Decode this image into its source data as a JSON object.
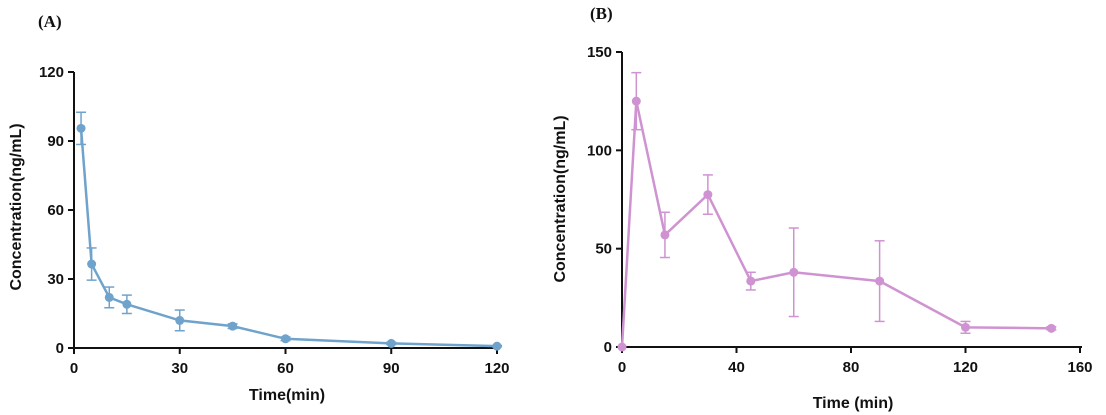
{
  "chart_data": [
    {
      "panel_label": "(A)",
      "type": "line",
      "xlabel": "Time(min)",
      "ylabel": "Concentration(ng/mL)",
      "xlim": [
        0,
        120
      ],
      "ylim": [
        0,
        120
      ],
      "xticks": [
        0,
        30,
        60,
        90,
        120
      ],
      "yticks": [
        0,
        30,
        60,
        90,
        120
      ],
      "color": "#6fa3cc",
      "grid": false,
      "legend": "none",
      "error_bars": true,
      "points": [
        {
          "x": 2,
          "y": 95.5,
          "err": 7
        },
        {
          "x": 5,
          "y": 36.5,
          "err": 7
        },
        {
          "x": 10,
          "y": 22,
          "err": 4.5
        },
        {
          "x": 15,
          "y": 19,
          "err": 4
        },
        {
          "x": 30,
          "y": 12,
          "err": 4.5
        },
        {
          "x": 45,
          "y": 9.5,
          "err": 1
        },
        {
          "x": 60,
          "y": 4,
          "err": 0.8
        },
        {
          "x": 90,
          "y": 2,
          "err": 0.5
        },
        {
          "x": 120,
          "y": 0.8,
          "err": 0.3
        }
      ]
    },
    {
      "panel_label": "(B)",
      "type": "line",
      "xlabel": "Time (min)",
      "ylabel": "Concentration(ng/mL)",
      "xlim": [
        0,
        160
      ],
      "ylim": [
        0,
        150
      ],
      "xticks": [
        0,
        40,
        80,
        120,
        160
      ],
      "yticks": [
        0,
        50,
        100,
        150
      ],
      "color": "#cf93d2",
      "grid": false,
      "legend": "none",
      "error_bars": true,
      "points": [
        {
          "x": 0,
          "y": 0,
          "err": 0
        },
        {
          "x": 5,
          "y": 125,
          "err": 14.5
        },
        {
          "x": 15,
          "y": 57,
          "err": 11.5
        },
        {
          "x": 30,
          "y": 77.5,
          "err": 10
        },
        {
          "x": 45,
          "y": 33.5,
          "err": 4.5
        },
        {
          "x": 60,
          "y": 38,
          "err": 22.5
        },
        {
          "x": 90,
          "y": 33.5,
          "err": 20.5
        },
        {
          "x": 120,
          "y": 10,
          "err": 3
        },
        {
          "x": 150,
          "y": 9.5,
          "err": 0.8
        }
      ]
    }
  ]
}
